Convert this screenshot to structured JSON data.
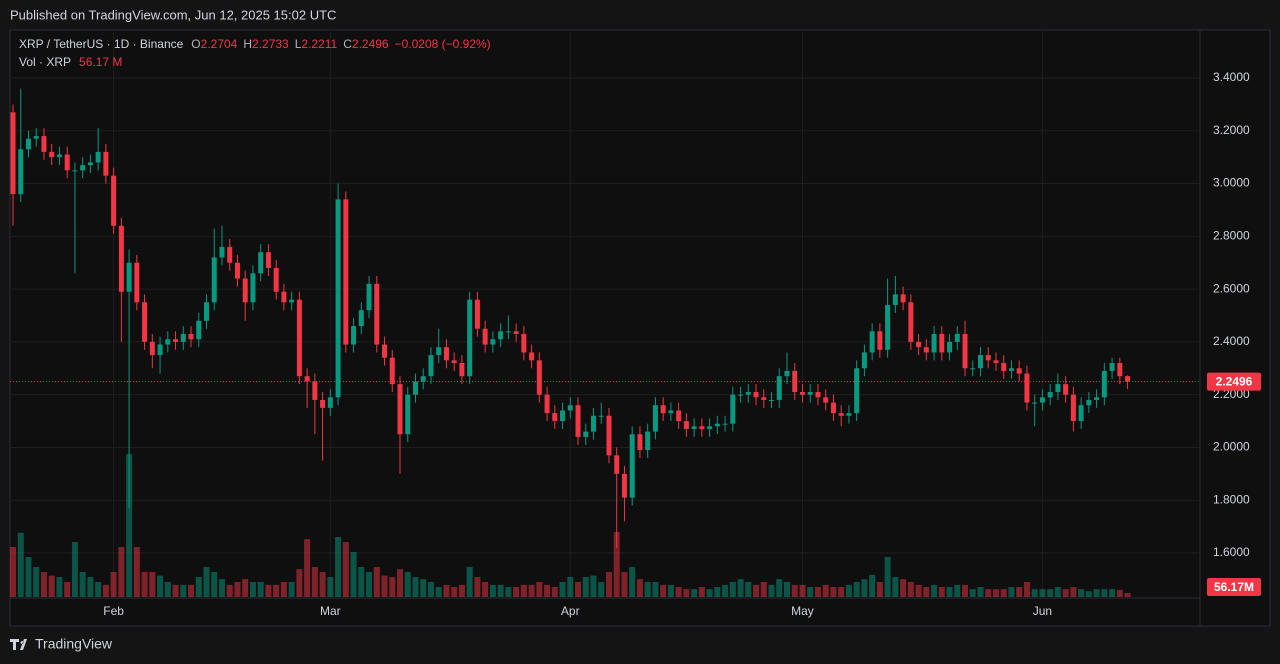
{
  "header": {
    "published": "Published on TradingView.com, Jun 12, 2025 15:02 UTC"
  },
  "footer": {
    "brand": "TradingView"
  },
  "chart_data": {
    "type": "candlestick",
    "title": "XRP / TetherUS · 1D · Binance",
    "legend_keys": [
      "O",
      "H",
      "L",
      "C"
    ],
    "legend_change": "−0.0208 (−0.92%)",
    "volume_title": "Vol · XRP",
    "volume_legend_label": "56.17 M",
    "volume_badge_label": "56.17M",
    "up_color": "#089981",
    "down_color": "#f23645",
    "grid": true,
    "categories": [
      null,
      null,
      null,
      null,
      null,
      null,
      null,
      null,
      null,
      null,
      null,
      null,
      null,
      "Feb",
      null,
      null,
      null,
      null,
      null,
      null,
      null,
      null,
      null,
      null,
      null,
      null,
      null,
      null,
      null,
      null,
      null,
      null,
      null,
      null,
      null,
      null,
      null,
      null,
      null,
      null,
      null,
      "Mar",
      null,
      null,
      null,
      null,
      null,
      null,
      null,
      null,
      null,
      null,
      null,
      null,
      null,
      null,
      null,
      null,
      null,
      null,
      null,
      null,
      null,
      null,
      null,
      null,
      null,
      null,
      null,
      null,
      null,
      null,
      "Apr",
      null,
      null,
      null,
      null,
      null,
      null,
      null,
      null,
      null,
      null,
      null,
      null,
      null,
      null,
      null,
      null,
      null,
      null,
      null,
      null,
      null,
      null,
      null,
      null,
      null,
      null,
      null,
      null,
      null,
      "May",
      null,
      null,
      null,
      null,
      null,
      null,
      null,
      null,
      null,
      null,
      null,
      null,
      null,
      null,
      null,
      null,
      null,
      null,
      null,
      null,
      null,
      null,
      null,
      null,
      null,
      null,
      null,
      null,
      null,
      null,
      "Jun",
      null,
      null,
      null,
      null,
      null,
      null,
      null,
      null,
      null,
      null,
      null
    ],
    "open": [
      3.27,
      2.96,
      3.13,
      3.17,
      3.18,
      3.12,
      3.1,
      3.11,
      3.05,
      3.05,
      3.07,
      3.08,
      3.12,
      3.03,
      2.84,
      2.59,
      2.7,
      2.55,
      2.4,
      2.35,
      2.39,
      2.41,
      2.4,
      2.43,
      2.41,
      2.48,
      2.55,
      2.72,
      2.76,
      2.7,
      2.64,
      2.55,
      2.66,
      2.74,
      2.68,
      2.59,
      2.55,
      2.56,
      2.27,
      2.25,
      2.18,
      2.15,
      2.19,
      2.94,
      2.39,
      2.46,
      2.52,
      2.62,
      2.39,
      2.34,
      2.24,
      2.05,
      2.2,
      2.25,
      2.27,
      2.35,
      2.38,
      2.33,
      2.32,
      2.27,
      2.56,
      2.45,
      2.39,
      2.41,
      2.44,
      2.44,
      2.43,
      2.36,
      2.33,
      2.2,
      2.13,
      2.1,
      2.14,
      2.16,
      2.04,
      2.06,
      2.12,
      2.12,
      1.97,
      1.9,
      1.81,
      2.05,
      1.99,
      2.06,
      2.16,
      2.13,
      2.14,
      2.1,
      2.07,
      2.08,
      2.07,
      2.08,
      2.09,
      2.09,
      2.2,
      2.2,
      2.21,
      2.19,
      2.18,
      2.18,
      2.27,
      2.29,
      2.21,
      2.2,
      2.21,
      2.19,
      2.17,
      2.13,
      2.12,
      2.13,
      2.3,
      2.36,
      2.44,
      2.37,
      2.54,
      2.58,
      2.55,
      2.4,
      2.38,
      2.36,
      2.43,
      2.36,
      2.4,
      2.43,
      2.3,
      2.3,
      2.35,
      2.33,
      2.32,
      2.29,
      2.3,
      2.28,
      2.17,
      2.17,
      2.19,
      2.21,
      2.24,
      2.2,
      2.1,
      2.16,
      2.18,
      2.19,
      2.29,
      2.32,
      2.2704
    ],
    "high": [
      3.3,
      3.36,
      3.2,
      3.21,
      3.21,
      3.15,
      3.14,
      3.14,
      3.08,
      3.1,
      3.11,
      3.21,
      3.15,
      3.06,
      2.87,
      2.75,
      2.73,
      2.58,
      2.43,
      2.42,
      2.44,
      2.44,
      2.46,
      2.46,
      2.51,
      2.58,
      2.83,
      2.84,
      2.79,
      2.73,
      2.67,
      2.69,
      2.77,
      2.77,
      2.71,
      2.62,
      2.59,
      2.59,
      2.3,
      2.28,
      2.21,
      2.22,
      3.0,
      2.97,
      2.49,
      2.55,
      2.65,
      2.65,
      2.42,
      2.37,
      2.27,
      2.23,
      2.28,
      2.3,
      2.38,
      2.45,
      2.41,
      2.36,
      2.35,
      2.59,
      2.59,
      2.48,
      2.44,
      2.47,
      2.5,
      2.47,
      2.46,
      2.39,
      2.36,
      2.23,
      2.16,
      2.17,
      2.19,
      2.19,
      2.09,
      2.15,
      2.17,
      2.15,
      2.0,
      1.93,
      2.08,
      2.08,
      2.09,
      2.19,
      2.19,
      2.17,
      2.17,
      2.13,
      2.11,
      2.11,
      2.11,
      2.12,
      2.12,
      2.23,
      2.23,
      2.24,
      2.24,
      2.22,
      2.21,
      2.3,
      2.36,
      2.32,
      2.24,
      2.24,
      2.24,
      2.22,
      2.2,
      2.16,
      2.16,
      2.33,
      2.39,
      2.47,
      2.47,
      2.64,
      2.65,
      2.61,
      2.58,
      2.43,
      2.41,
      2.46,
      2.46,
      2.43,
      2.46,
      2.48,
      2.33,
      2.38,
      2.38,
      2.36,
      2.35,
      2.33,
      2.33,
      2.31,
      2.2,
      2.22,
      2.24,
      2.28,
      2.27,
      2.23,
      2.19,
      2.21,
      2.22,
      2.32,
      2.34,
      2.34,
      2.2733
    ],
    "low": [
      2.84,
      2.93,
      3.1,
      3.14,
      3.09,
      3.07,
      3.07,
      3.02,
      2.66,
      3.02,
      3.04,
      3.05,
      3.0,
      2.81,
      2.4,
      1.77,
      2.52,
      2.37,
      2.3,
      2.28,
      2.36,
      2.37,
      2.37,
      2.38,
      2.38,
      2.45,
      2.52,
      2.69,
      2.67,
      2.61,
      2.48,
      2.52,
      2.63,
      2.65,
      2.56,
      2.52,
      2.52,
      2.24,
      2.15,
      2.05,
      1.95,
      2.12,
      2.16,
      2.36,
      2.36,
      2.43,
      2.49,
      2.36,
      2.31,
      2.21,
      1.9,
      2.02,
      2.17,
      2.22,
      2.24,
      2.32,
      2.3,
      2.29,
      2.24,
      2.24,
      2.42,
      2.36,
      2.36,
      2.38,
      2.41,
      2.4,
      2.33,
      2.3,
      2.17,
      2.1,
      2.07,
      2.07,
      2.11,
      2.01,
      2.01,
      2.03,
      2.09,
      1.94,
      1.62,
      1.72,
      1.78,
      1.96,
      1.96,
      2.03,
      2.1,
      2.1,
      2.07,
      2.04,
      2.04,
      2.04,
      2.04,
      2.05,
      2.06,
      2.06,
      2.17,
      2.17,
      2.16,
      2.15,
      2.15,
      2.15,
      2.24,
      2.18,
      2.17,
      2.17,
      2.16,
      2.14,
      2.1,
      2.08,
      2.09,
      2.1,
      2.27,
      2.33,
      2.34,
      2.34,
      2.51,
      2.52,
      2.37,
      2.35,
      2.33,
      2.33,
      2.33,
      2.33,
      2.37,
      2.27,
      2.27,
      2.27,
      2.3,
      2.29,
      2.26,
      2.26,
      2.25,
      2.14,
      2.08,
      2.14,
      2.16,
      2.18,
      2.17,
      2.06,
      2.07,
      2.13,
      2.15,
      2.16,
      2.26,
      2.24,
      2.2211
    ],
    "close": [
      2.96,
      3.13,
      3.17,
      3.18,
      3.12,
      3.1,
      3.11,
      3.05,
      3.05,
      3.07,
      3.08,
      3.12,
      3.03,
      2.84,
      2.59,
      2.7,
      2.55,
      2.4,
      2.35,
      2.39,
      2.41,
      2.4,
      2.43,
      2.41,
      2.48,
      2.55,
      2.72,
      2.76,
      2.7,
      2.64,
      2.55,
      2.66,
      2.74,
      2.68,
      2.59,
      2.55,
      2.56,
      2.27,
      2.25,
      2.18,
      2.15,
      2.19,
      2.94,
      2.39,
      2.46,
      2.52,
      2.62,
      2.39,
      2.34,
      2.24,
      2.05,
      2.2,
      2.25,
      2.27,
      2.35,
      2.38,
      2.33,
      2.32,
      2.27,
      2.56,
      2.45,
      2.39,
      2.41,
      2.44,
      2.44,
      2.43,
      2.36,
      2.33,
      2.2,
      2.13,
      2.1,
      2.14,
      2.16,
      2.04,
      2.06,
      2.12,
      2.12,
      1.97,
      1.9,
      1.81,
      2.05,
      1.99,
      2.06,
      2.16,
      2.13,
      2.14,
      2.1,
      2.07,
      2.08,
      2.07,
      2.08,
      2.09,
      2.09,
      2.2,
      2.2,
      2.21,
      2.19,
      2.18,
      2.18,
      2.27,
      2.29,
      2.21,
      2.2,
      2.21,
      2.19,
      2.17,
      2.13,
      2.12,
      2.13,
      2.3,
      2.36,
      2.44,
      2.37,
      2.54,
      2.58,
      2.55,
      2.4,
      2.38,
      2.36,
      2.43,
      2.36,
      2.4,
      2.43,
      2.3,
      2.3,
      2.35,
      2.33,
      2.32,
      2.29,
      2.3,
      2.28,
      2.17,
      2.17,
      2.19,
      2.21,
      2.24,
      2.2,
      2.1,
      2.16,
      2.18,
      2.19,
      2.29,
      2.32,
      2.27,
      2.2496
    ],
    "volume": [
      700,
      900,
      560,
      420,
      350,
      300,
      280,
      210,
      770,
      350,
      280,
      210,
      170,
      350,
      700,
      2000,
      700,
      350,
      350,
      300,
      210,
      170,
      170,
      170,
      280,
      420,
      350,
      250,
      170,
      210,
      250,
      210,
      210,
      170,
      170,
      210,
      210,
      390,
      810,
      420,
      350,
      280,
      840,
      770,
      630,
      420,
      350,
      420,
      300,
      280,
      390,
      350,
      280,
      250,
      210,
      140,
      170,
      140,
      170,
      420,
      280,
      210,
      170,
      170,
      140,
      140,
      170,
      170,
      210,
      170,
      140,
      210,
      280,
      210,
      280,
      300,
      210,
      350,
      910,
      350,
      420,
      250,
      210,
      210,
      170,
      170,
      140,
      110,
      110,
      140,
      110,
      140,
      170,
      210,
      250,
      210,
      170,
      210,
      170,
      250,
      210,
      170,
      170,
      140,
      140,
      170,
      140,
      140,
      170,
      210,
      250,
      310,
      210,
      560,
      280,
      250,
      210,
      170,
      140,
      170,
      140,
      140,
      170,
      170,
      110,
      140,
      110,
      110,
      110,
      140,
      140,
      210,
      110,
      110,
      110,
      140,
      110,
      140,
      110,
      80,
      110,
      110,
      110,
      100,
      56.17
    ],
    "ylim": [
      1.5,
      3.5
    ],
    "yticks": [
      {
        "value": 1.6,
        "label": "1.6000"
      },
      {
        "value": 1.8,
        "label": "1.8000"
      },
      {
        "value": 2.0,
        "label": "2.0000"
      },
      {
        "value": 2.2,
        "label": "2.2000"
      },
      {
        "value": 2.4,
        "label": "2.4000"
      },
      {
        "value": 2.6,
        "label": "2.6000"
      },
      {
        "value": 2.8,
        "label": "2.8000"
      },
      {
        "value": 3.0,
        "label": "3.0000"
      },
      {
        "value": 3.2,
        "label": "3.2000"
      },
      {
        "value": 3.4,
        "label": "3.4000"
      }
    ]
  }
}
